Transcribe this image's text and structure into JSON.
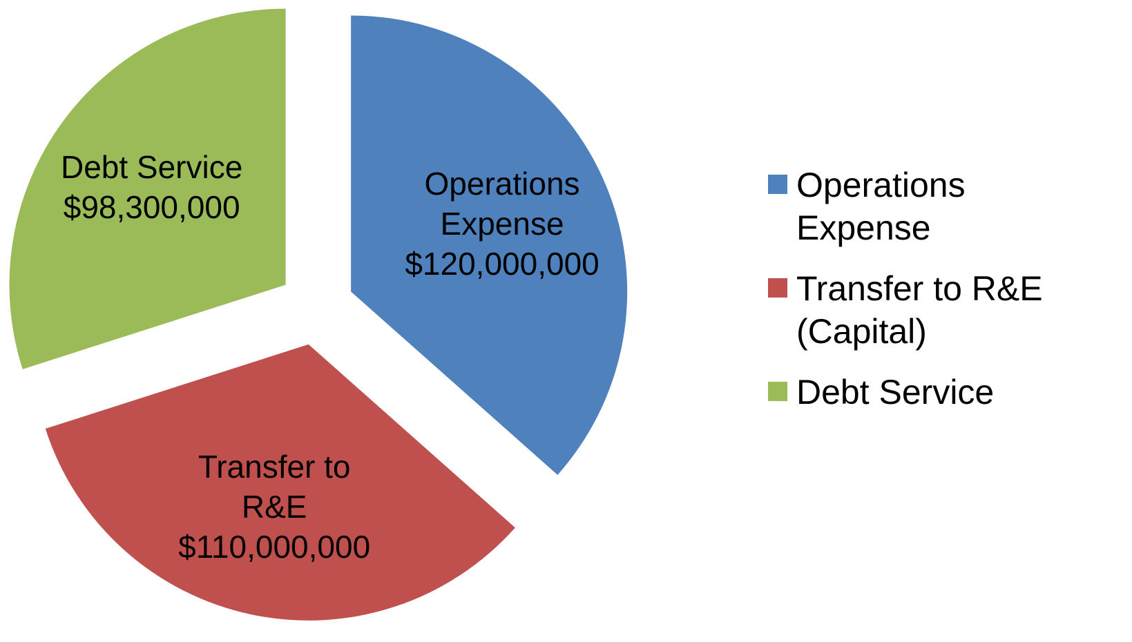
{
  "chart_data": {
    "type": "pie",
    "categories": [
      "Operations Expense",
      "Transfer to R&E (Capital)",
      "Debt Service"
    ],
    "slice_labels": [
      "Operations Expense",
      "Transfer to R&E",
      "Debt Service"
    ],
    "values": [
      120000000,
      110000000,
      98300000
    ],
    "value_labels": [
      "$120,000,000",
      "$110,000,000",
      "$98,300,000"
    ],
    "colors": [
      "#4f81bd",
      "#c0504d",
      "#9bbb59"
    ],
    "legend": "right"
  }
}
